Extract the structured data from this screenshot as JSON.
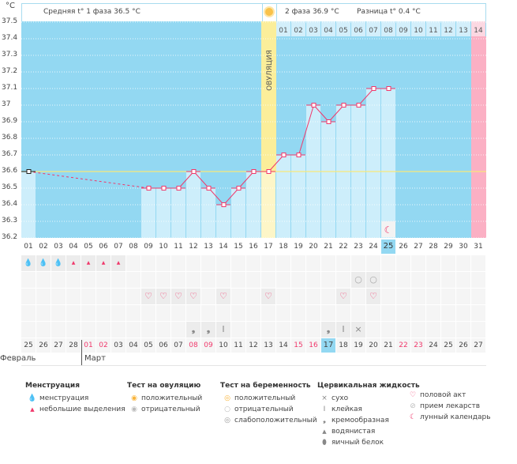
{
  "header": {
    "unit": "°C",
    "phase1": "Средняя t° 1 фаза  36.5 °C",
    "phase2": "2 фаза  36.9 °C",
    "diff": "Разница t° 0.4 °C",
    "ovulation_label": "ОВУЛЯЦИЯ"
  },
  "chart_data": {
    "type": "line",
    "ylim": [
      36.2,
      37.5
    ],
    "yticks": [
      "37.5",
      "37.4",
      "37.3",
      "37.2",
      "37.1",
      "37",
      "36.9",
      "36.8",
      "36.7",
      "36.6",
      "36.5",
      "36.4",
      "36.3",
      "36.2"
    ],
    "coverline": 36.6,
    "cycle_days": [
      "01",
      "02",
      "03",
      "04",
      "05",
      "06",
      "07",
      "08",
      "09",
      "10",
      "11",
      "12",
      "13",
      "14",
      "15",
      "16",
      "17",
      "18",
      "19",
      "20",
      "21",
      "22",
      "23",
      "24",
      "25",
      "26",
      "27",
      "28",
      "29",
      "30",
      "31"
    ],
    "temperatures": [
      36.6,
      null,
      null,
      null,
      null,
      null,
      null,
      null,
      36.5,
      36.5,
      36.5,
      36.6,
      36.5,
      36.4,
      36.5,
      36.6,
      36.6,
      36.7,
      36.7,
      37.0,
      36.9,
      37.0,
      37.0,
      37.1,
      37.1,
      null,
      null,
      null,
      null,
      null,
      null
    ],
    "ovulation_day": 17,
    "post_ovulation_days": [
      "01",
      "02",
      "03",
      "04",
      "05",
      "06",
      "07",
      "08",
      "09",
      "10",
      "11",
      "12",
      "13",
      "14"
    ],
    "current_cycle_day": 25,
    "colors": {
      "background": "#93d8f2",
      "bar": "#cdeefb",
      "line": "#f0386b",
      "coverline": "#f8e77a",
      "ovulation": "#fbee9a",
      "period_end": "#fbb0c4"
    }
  },
  "rows": {
    "menstruation": {
      "1": "heavy",
      "2": "heavy",
      "3": "heavy",
      "4": "light",
      "5": "light",
      "6": "light",
      "7": "light"
    },
    "pregnancy_test": {
      "23": "negative",
      "24": "negative"
    },
    "intercourse": [
      9,
      10,
      11,
      12,
      14,
      17,
      22,
      24
    ],
    "cervical": {
      "12": "creamy",
      "13": "creamy",
      "14": "sticky",
      "21": "creamy",
      "22": "sticky",
      "23": "dry"
    }
  },
  "dates": [
    "25",
    "26",
    "27",
    "28",
    "01",
    "02",
    "03",
    "04",
    "05",
    "06",
    "07",
    "08",
    "09",
    "10",
    "11",
    "12",
    "13",
    "14",
    "15",
    "16",
    "17",
    "18",
    "19",
    "20",
    "21",
    "22",
    "23",
    "24",
    "25",
    "26",
    "27"
  ],
  "weekend_dates": [
    4,
    5,
    11,
    12,
    18,
    19,
    25,
    26
  ],
  "today_index": 20,
  "months": {
    "feb": "Февраль",
    "mar": "Март"
  },
  "legend": {
    "menstruation": {
      "title": "Менструация",
      "items": [
        "менструация",
        "небольшие выделения"
      ]
    },
    "ovulation_test": {
      "title": "Тест на овуляцию",
      "items": [
        "положительный",
        "отрицательный"
      ]
    },
    "pregnancy_test": {
      "title": "Тест на беременность",
      "items": [
        "положительный",
        "отрицательный",
        "слабоположительный"
      ]
    },
    "cervical": {
      "title": "Цервикальная жидкость",
      "items": [
        "сухо",
        "клейкая",
        "кремообразная",
        "водянистая",
        "яичный белок"
      ]
    },
    "other": {
      "items": [
        "половой акт",
        "прием лекарств",
        "лунный календарь"
      ]
    }
  }
}
